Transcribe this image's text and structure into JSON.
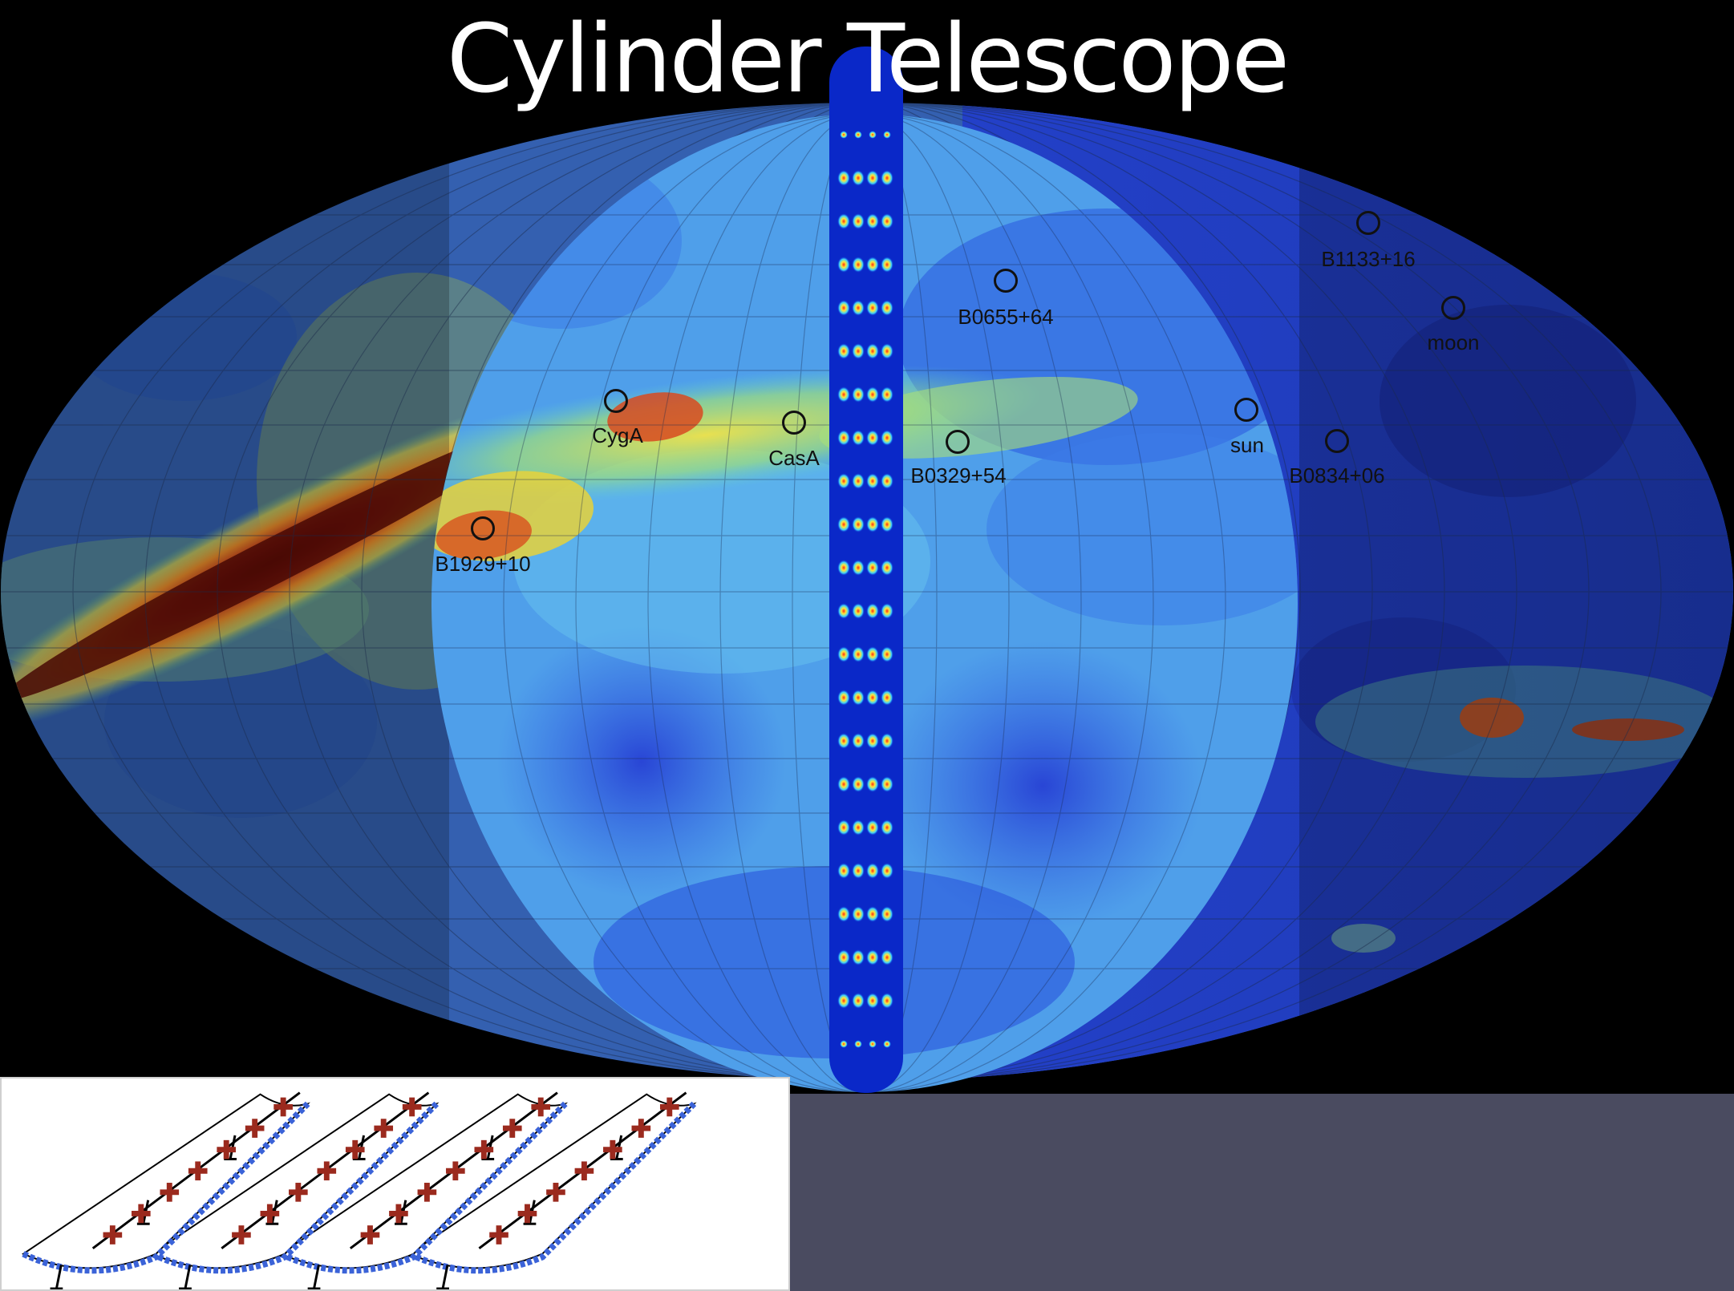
{
  "title": "Cylinder Telescope",
  "sources": [
    {
      "id": "cyga",
      "label": "CygA"
    },
    {
      "id": "casa",
      "label": "CasA"
    },
    {
      "id": "b0329",
      "label": "B0329+54"
    },
    {
      "id": "b1929",
      "label": "B1929+10"
    },
    {
      "id": "b0655",
      "label": "B0655+64"
    },
    {
      "id": "b1133",
      "label": "B1133+16"
    },
    {
      "id": "moon",
      "label": "moon"
    },
    {
      "id": "sun",
      "label": "sun"
    },
    {
      "id": "b0834",
      "label": "B0834+06"
    }
  ],
  "colors": {
    "background": "#000000",
    "title": "#ffffff",
    "panel": "#4a4b60",
    "feed": "#9b2a1e",
    "truss": "#3b63d8"
  }
}
